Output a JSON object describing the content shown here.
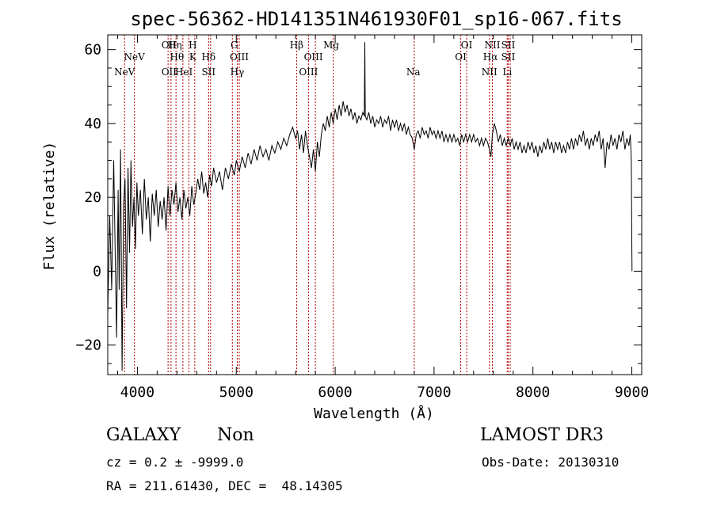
{
  "chart_data": {
    "type": "line",
    "title": "spec-56362-HD141351N461930F01_sp16-067.fits",
    "xlabel": "Wavelength (Å)",
    "ylabel": "Flux (relative)",
    "xlim": [
      3700,
      9100
    ],
    "ylim": [
      -28,
      64
    ],
    "xticks": [
      4000,
      5000,
      6000,
      7000,
      8000,
      9000
    ],
    "yticks": [
      -20,
      0,
      20,
      40,
      60
    ],
    "series": [
      {
        "name": "spectrum",
        "points": [
          [
            3700,
            -12
          ],
          [
            3720,
            15
          ],
          [
            3740,
            -5
          ],
          [
            3760,
            30
          ],
          [
            3775,
            5
          ],
          [
            3790,
            -18
          ],
          [
            3805,
            22
          ],
          [
            3815,
            -5
          ],
          [
            3830,
            33
          ],
          [
            3845,
            -27
          ],
          [
            3860,
            18
          ],
          [
            3875,
            25
          ],
          [
            3890,
            -10
          ],
          [
            3905,
            28
          ],
          [
            3920,
            5
          ],
          [
            3935,
            30
          ],
          [
            3950,
            12
          ],
          [
            3965,
            20
          ],
          [
            3980,
            6
          ],
          [
            3995,
            24
          ],
          [
            4010,
            15
          ],
          [
            4030,
            22
          ],
          [
            4050,
            10
          ],
          [
            4070,
            25
          ],
          [
            4090,
            14
          ],
          [
            4110,
            20
          ],
          [
            4130,
            8
          ],
          [
            4150,
            21
          ],
          [
            4170,
            15
          ],
          [
            4190,
            22
          ],
          [
            4210,
            12
          ],
          [
            4230,
            19
          ],
          [
            4250,
            14
          ],
          [
            4270,
            20
          ],
          [
            4290,
            11
          ],
          [
            4310,
            23
          ],
          [
            4330,
            15
          ],
          [
            4350,
            22
          ],
          [
            4370,
            18
          ],
          [
            4390,
            24
          ],
          [
            4410,
            16
          ],
          [
            4430,
            20
          ],
          [
            4450,
            14
          ],
          [
            4470,
            22
          ],
          [
            4490,
            17
          ],
          [
            4510,
            20
          ],
          [
            4530,
            15
          ],
          [
            4550,
            23
          ],
          [
            4570,
            18
          ],
          [
            4590,
            21
          ],
          [
            4610,
            25
          ],
          [
            4630,
            22
          ],
          [
            4650,
            27
          ],
          [
            4670,
            21
          ],
          [
            4690,
            24
          ],
          [
            4710,
            20
          ],
          [
            4730,
            26
          ],
          [
            4750,
            23
          ],
          [
            4770,
            28
          ],
          [
            4800,
            24
          ],
          [
            4830,
            27
          ],
          [
            4860,
            22
          ],
          [
            4890,
            28
          ],
          [
            4920,
            25
          ],
          [
            4950,
            29
          ],
          [
            4980,
            26
          ],
          [
            5000,
            30
          ],
          [
            5030,
            27
          ],
          [
            5060,
            31
          ],
          [
            5090,
            28
          ],
          [
            5120,
            32
          ],
          [
            5150,
            29
          ],
          [
            5180,
            33
          ],
          [
            5210,
            30
          ],
          [
            5240,
            34
          ],
          [
            5270,
            31
          ],
          [
            5300,
            33
          ],
          [
            5330,
            30
          ],
          [
            5360,
            34
          ],
          [
            5390,
            32
          ],
          [
            5420,
            35
          ],
          [
            5450,
            33
          ],
          [
            5480,
            36
          ],
          [
            5510,
            34
          ],
          [
            5540,
            37
          ],
          [
            5570,
            39
          ],
          [
            5600,
            36
          ],
          [
            5620,
            38
          ],
          [
            5640,
            33
          ],
          [
            5660,
            37
          ],
          [
            5680,
            32
          ],
          [
            5700,
            38
          ],
          [
            5720,
            34
          ],
          [
            5740,
            31
          ],
          [
            5760,
            28
          ],
          [
            5780,
            33
          ],
          [
            5800,
            27
          ],
          [
            5820,
            35
          ],
          [
            5840,
            31
          ],
          [
            5860,
            37
          ],
          [
            5880,
            40
          ],
          [
            5900,
            38
          ],
          [
            5920,
            42
          ],
          [
            5940,
            39
          ],
          [
            5960,
            43
          ],
          [
            5980,
            40
          ],
          [
            6000,
            44
          ],
          [
            6020,
            41
          ],
          [
            6040,
            45
          ],
          [
            6060,
            42
          ],
          [
            6080,
            46
          ],
          [
            6100,
            43
          ],
          [
            6120,
            45
          ],
          [
            6140,
            42
          ],
          [
            6160,
            44
          ],
          [
            6180,
            41
          ],
          [
            6200,
            43
          ],
          [
            6220,
            40
          ],
          [
            6240,
            42
          ],
          [
            6260,
            41
          ],
          [
            6280,
            43
          ],
          [
            6295,
            42
          ],
          [
            6300,
            62
          ],
          [
            6305,
            42
          ],
          [
            6320,
            41
          ],
          [
            6340,
            43
          ],
          [
            6360,
            40
          ],
          [
            6380,
            42
          ],
          [
            6400,
            39
          ],
          [
            6420,
            41
          ],
          [
            6440,
            40
          ],
          [
            6460,
            42
          ],
          [
            6480,
            39
          ],
          [
            6500,
            41
          ],
          [
            6520,
            40
          ],
          [
            6540,
            42
          ],
          [
            6560,
            38
          ],
          [
            6580,
            41
          ],
          [
            6600,
            39
          ],
          [
            6620,
            41
          ],
          [
            6640,
            38
          ],
          [
            6660,
            40
          ],
          [
            6680,
            38
          ],
          [
            6700,
            40
          ],
          [
            6720,
            37
          ],
          [
            6740,
            39
          ],
          [
            6760,
            37
          ],
          [
            6780,
            36
          ],
          [
            6800,
            33
          ],
          [
            6820,
            37
          ],
          [
            6840,
            38
          ],
          [
            6860,
            36
          ],
          [
            6880,
            39
          ],
          [
            6900,
            37
          ],
          [
            6920,
            38
          ],
          [
            6940,
            36
          ],
          [
            6960,
            39
          ],
          [
            6980,
            37
          ],
          [
            7000,
            38
          ],
          [
            7020,
            36
          ],
          [
            7040,
            38
          ],
          [
            7060,
            36
          ],
          [
            7080,
            38
          ],
          [
            7100,
            35
          ],
          [
            7120,
            37
          ],
          [
            7140,
            35
          ],
          [
            7160,
            37
          ],
          [
            7180,
            35
          ],
          [
            7200,
            37
          ],
          [
            7220,
            35
          ],
          [
            7240,
            36
          ],
          [
            7260,
            34
          ],
          [
            7280,
            37
          ],
          [
            7300,
            35
          ],
          [
            7320,
            37
          ],
          [
            7340,
            35
          ],
          [
            7360,
            37
          ],
          [
            7380,
            35
          ],
          [
            7400,
            37
          ],
          [
            7420,
            35
          ],
          [
            7440,
            36
          ],
          [
            7460,
            34
          ],
          [
            7480,
            36
          ],
          [
            7500,
            34
          ],
          [
            7520,
            36
          ],
          [
            7540,
            35
          ],
          [
            7560,
            33
          ],
          [
            7575,
            31
          ],
          [
            7590,
            37
          ],
          [
            7610,
            40
          ],
          [
            7630,
            38
          ],
          [
            7650,
            35
          ],
          [
            7670,
            37
          ],
          [
            7690,
            34
          ],
          [
            7710,
            36
          ],
          [
            7730,
            34
          ],
          [
            7750,
            36
          ],
          [
            7770,
            34
          ],
          [
            7790,
            36
          ],
          [
            7810,
            33
          ],
          [
            7830,
            35
          ],
          [
            7850,
            33
          ],
          [
            7870,
            35
          ],
          [
            7890,
            32
          ],
          [
            7910,
            34
          ],
          [
            7930,
            32
          ],
          [
            7950,
            35
          ],
          [
            7970,
            33
          ],
          [
            7990,
            35
          ],
          [
            8010,
            32
          ],
          [
            8030,
            34
          ],
          [
            8050,
            31
          ],
          [
            8070,
            34
          ],
          [
            8090,
            32
          ],
          [
            8110,
            35
          ],
          [
            8130,
            33
          ],
          [
            8150,
            36
          ],
          [
            8170,
            33
          ],
          [
            8190,
            35
          ],
          [
            8210,
            32
          ],
          [
            8230,
            35
          ],
          [
            8250,
            33
          ],
          [
            8270,
            35
          ],
          [
            8290,
            32
          ],
          [
            8310,
            34
          ],
          [
            8330,
            32
          ],
          [
            8350,
            35
          ],
          [
            8370,
            33
          ],
          [
            8390,
            36
          ],
          [
            8410,
            33
          ],
          [
            8430,
            36
          ],
          [
            8450,
            34
          ],
          [
            8470,
            37
          ],
          [
            8490,
            35
          ],
          [
            8510,
            38
          ],
          [
            8530,
            34
          ],
          [
            8550,
            36
          ],
          [
            8570,
            33
          ],
          [
            8590,
            36
          ],
          [
            8610,
            34
          ],
          [
            8630,
            37
          ],
          [
            8650,
            35
          ],
          [
            8670,
            38
          ],
          [
            8690,
            33
          ],
          [
            8710,
            36
          ],
          [
            8730,
            28
          ],
          [
            8750,
            35
          ],
          [
            8770,
            33
          ],
          [
            8790,
            37
          ],
          [
            8810,
            34
          ],
          [
            8830,
            36
          ],
          [
            8850,
            33
          ],
          [
            8870,
            37
          ],
          [
            8890,
            35
          ],
          [
            8910,
            38
          ],
          [
            8930,
            33
          ],
          [
            8950,
            36
          ],
          [
            8970,
            34
          ],
          [
            8985,
            37
          ],
          [
            8995,
            30
          ],
          [
            9000,
            8
          ],
          [
            9002,
            0
          ]
        ]
      }
    ],
    "lines": [
      {
        "name": "NeV",
        "wl": 3870,
        "row": 3
      },
      {
        "name": "NeV",
        "wl": 3970,
        "row": 2
      },
      {
        "name": "OII",
        "wl": 4320,
        "row": 1
      },
      {
        "name": "OII",
        "wl": 4320,
        "row": 3
      },
      {
        "name": "Hη",
        "wl": 4380,
        "row": 1
      },
      {
        "name": "Hθ",
        "wl": 4400,
        "row": 2
      },
      {
        "name": "HeI",
        "wl": 4470,
        "row": 3
      },
      {
        "name": "H",
        "wl": 4560,
        "row": 1
      },
      {
        "name": "K",
        "wl": 4560,
        "row": 2
      },
      {
        "name": "Hδ",
        "wl": 4720,
        "row": 2
      },
      {
        "name": "SII",
        "wl": 4720,
        "row": 3
      },
      {
        "name": "G",
        "wl": 4980,
        "row": 1
      },
      {
        "name": "OIII",
        "wl": 5030,
        "row": 2
      },
      {
        "name": "Hγ",
        "wl": 5010,
        "row": 3
      },
      {
        "name": "Hβ",
        "wl": 5610,
        "row": 1
      },
      {
        "name": "OIII",
        "wl": 5780,
        "row": 2
      },
      {
        "name": "OIII",
        "wl": 5730,
        "row": 3
      },
      {
        "name": "Mg",
        "wl": 5960,
        "row": 1
      },
      {
        "name": "Na",
        "wl": 6790,
        "row": 3
      },
      {
        "name": "OI",
        "wl": 7330,
        "row": 1
      },
      {
        "name": "OI",
        "wl": 7270,
        "row": 2
      },
      {
        "name": "NII",
        "wl": 7590,
        "row": 1
      },
      {
        "name": "Hα",
        "wl": 7570,
        "row": 2
      },
      {
        "name": "NII",
        "wl": 7560,
        "row": 3
      },
      {
        "name": "SII",
        "wl": 7750,
        "row": 1
      },
      {
        "name": "SII",
        "wl": 7750,
        "row": 2
      },
      {
        "name": "Li",
        "wl": 7740,
        "row": 3
      }
    ],
    "line_marks": [
      3870,
      3970,
      4310,
      4340,
      4390,
      4460,
      4520,
      4580,
      4720,
      4740,
      4960,
      5010,
      5030,
      5610,
      5730,
      5800,
      5980,
      6800,
      7270,
      7330,
      7560,
      7590,
      7740,
      7750,
      7770
    ]
  },
  "info": {
    "object_class": "GALAXY",
    "subclass": "Non",
    "survey": "LAMOST DR3",
    "cz": "cz = 0.2 ± -9999.0",
    "obs_date": "Obs-Date: 20130310",
    "coords": "RA = 211.61430, DEC =  48.14305"
  }
}
